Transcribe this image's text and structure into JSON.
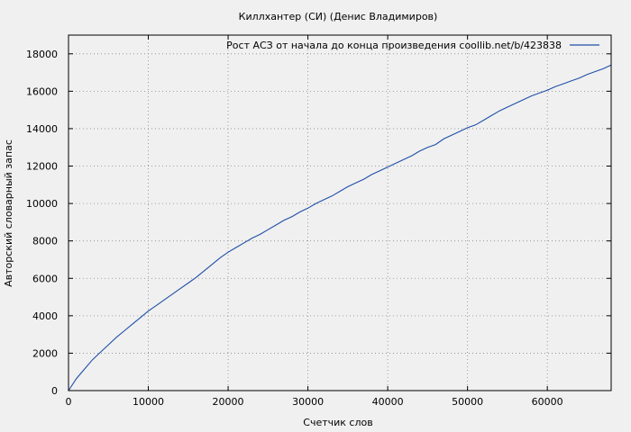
{
  "chart_data": {
    "type": "line",
    "title": "Киллхантер (СИ) (Денис Владимиров)",
    "xlabel": "Счетчик слов",
    "ylabel": "Авторский словарный запас",
    "xlim": [
      0,
      68000
    ],
    "ylim": [
      0,
      19000
    ],
    "x_ticks": [
      0,
      10000,
      20000,
      30000,
      40000,
      50000,
      60000
    ],
    "y_ticks": [
      0,
      2000,
      4000,
      6000,
      8000,
      10000,
      12000,
      14000,
      16000,
      18000
    ],
    "grid": true,
    "legend_position": "top-right",
    "series": [
      {
        "name": "Рост АСЗ от начала до конца произведения coollib.net/b/423838",
        "color": "#1f4ea8",
        "points": [
          [
            0,
            0
          ],
          [
            1000,
            650
          ],
          [
            2000,
            1150
          ],
          [
            3000,
            1650
          ],
          [
            4000,
            2050
          ],
          [
            5000,
            2450
          ],
          [
            6000,
            2850
          ],
          [
            7000,
            3200
          ],
          [
            8000,
            3550
          ],
          [
            9000,
            3900
          ],
          [
            10000,
            4250
          ],
          [
            11000,
            4550
          ],
          [
            12000,
            4850
          ],
          [
            13000,
            5150
          ],
          [
            14000,
            5450
          ],
          [
            15000,
            5750
          ],
          [
            16000,
            6050
          ],
          [
            17000,
            6400
          ],
          [
            18000,
            6750
          ],
          [
            19000,
            7100
          ],
          [
            20000,
            7400
          ],
          [
            21000,
            7650
          ],
          [
            22000,
            7900
          ],
          [
            23000,
            8150
          ],
          [
            24000,
            8350
          ],
          [
            25000,
            8600
          ],
          [
            26000,
            8850
          ],
          [
            27000,
            9100
          ],
          [
            28000,
            9300
          ],
          [
            29000,
            9550
          ],
          [
            30000,
            9750
          ],
          [
            31000,
            10000
          ],
          [
            32000,
            10200
          ],
          [
            33000,
            10400
          ],
          [
            34000,
            10650
          ],
          [
            35000,
            10900
          ],
          [
            36000,
            11100
          ],
          [
            37000,
            11300
          ],
          [
            38000,
            11550
          ],
          [
            39000,
            11750
          ],
          [
            40000,
            11950
          ],
          [
            41000,
            12150
          ],
          [
            42000,
            12350
          ],
          [
            43000,
            12550
          ],
          [
            44000,
            12800
          ],
          [
            45000,
            13000
          ],
          [
            46000,
            13150
          ],
          [
            47000,
            13450
          ],
          [
            48000,
            13650
          ],
          [
            49000,
            13850
          ],
          [
            50000,
            14050
          ],
          [
            51000,
            14200
          ],
          [
            52000,
            14450
          ],
          [
            53000,
            14700
          ],
          [
            54000,
            14950
          ],
          [
            55000,
            15150
          ],
          [
            56000,
            15350
          ],
          [
            57000,
            15550
          ],
          [
            58000,
            15750
          ],
          [
            59000,
            15900
          ],
          [
            60000,
            16050
          ],
          [
            61000,
            16250
          ],
          [
            62000,
            16400
          ],
          [
            63000,
            16550
          ],
          [
            64000,
            16700
          ],
          [
            65000,
            16900
          ],
          [
            66000,
            17050
          ],
          [
            67000,
            17200
          ],
          [
            68000,
            17400
          ]
        ]
      }
    ]
  }
}
